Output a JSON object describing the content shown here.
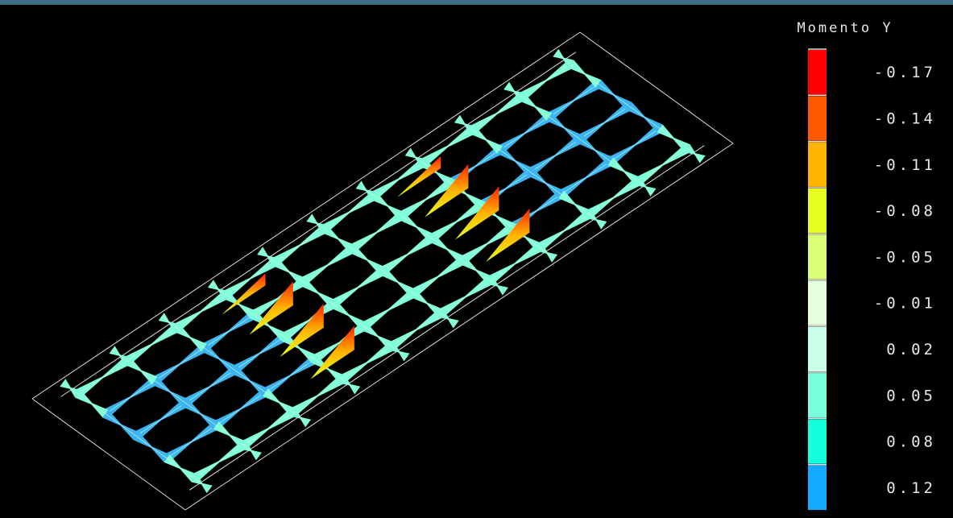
{
  "legend": {
    "title": "Momento Y",
    "items": [
      {
        "label": "-0.17",
        "color": "#ff0000"
      },
      {
        "label": "-0.14",
        "color": "#ff5a00"
      },
      {
        "label": "-0.11",
        "color": "#ffb400"
      },
      {
        "label": "-0.08",
        "color": "#e6ff1e"
      },
      {
        "label": "-0.05",
        "color": "#dcff78"
      },
      {
        "label": "-0.01",
        "color": "#e6ffdc"
      },
      {
        "label": "0.02",
        "color": "#c8ffe6"
      },
      {
        "label": "0.05",
        "color": "#78ffdc"
      },
      {
        "label": "0.08",
        "color": "#14ffdc"
      },
      {
        "label": "0.12",
        "color": "#14aaff"
      }
    ]
  }
}
